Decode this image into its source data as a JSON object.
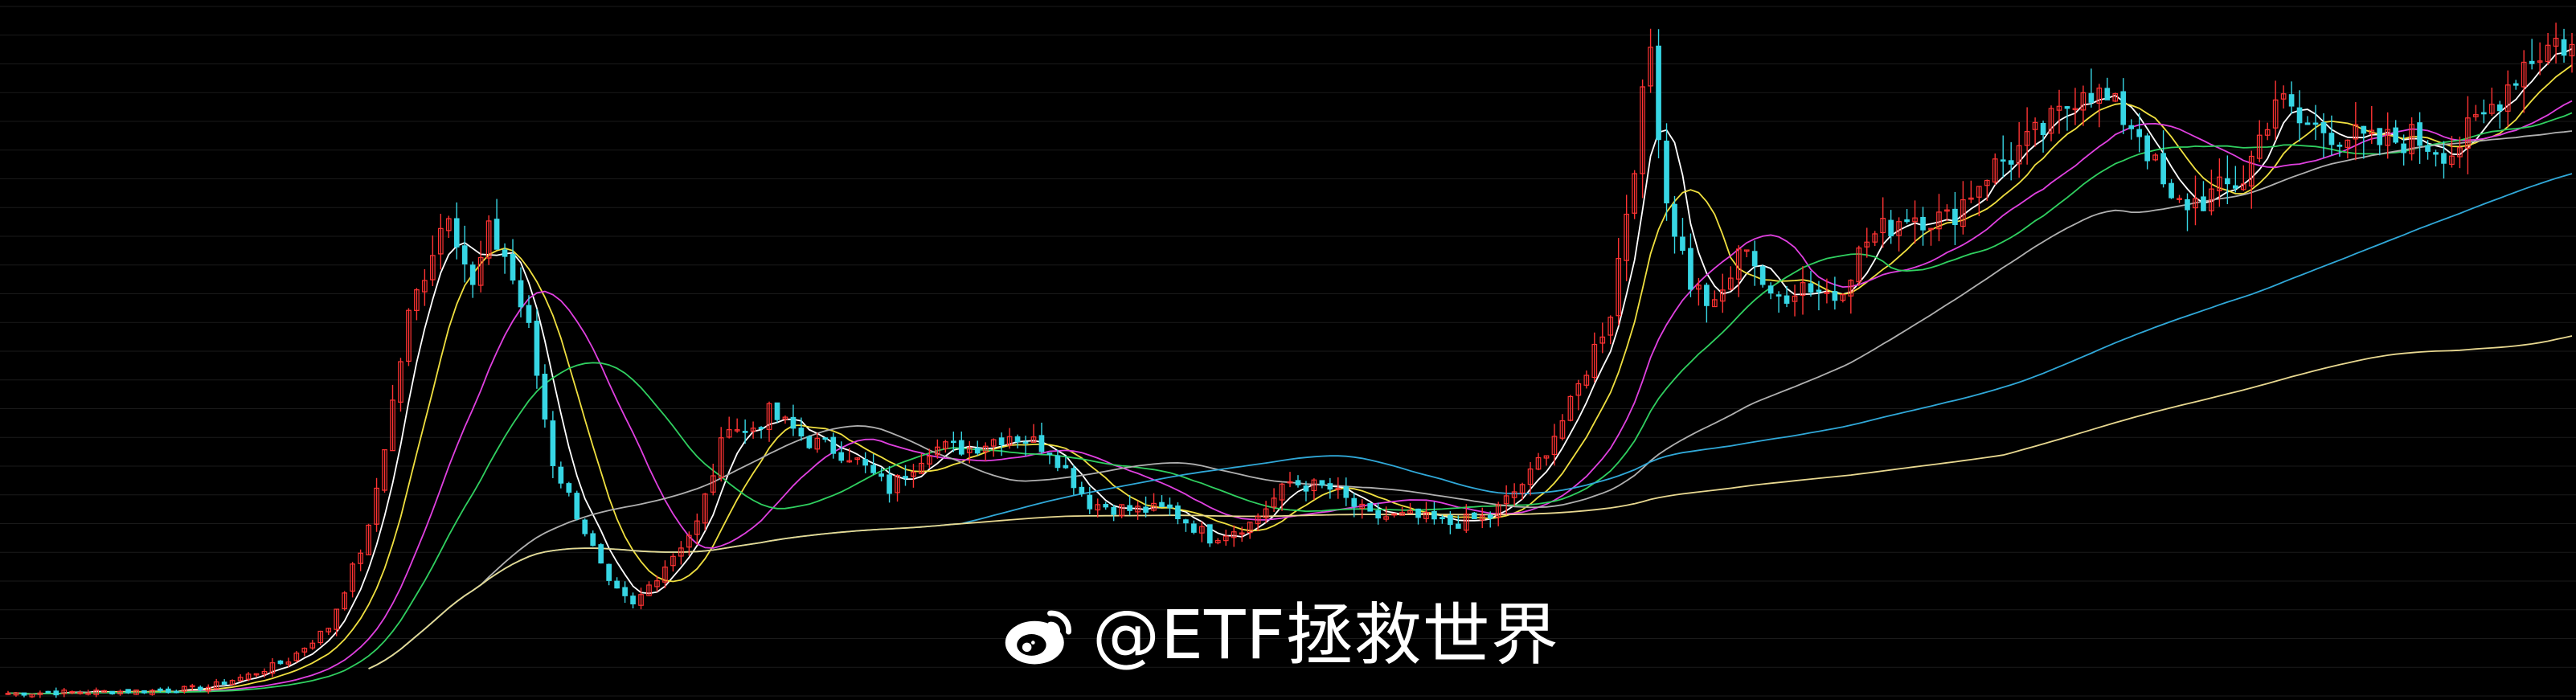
{
  "watermark": {
    "text": "@ETF拯救世界",
    "icon": "weibo-logo-icon"
  },
  "chart_data": {
    "type": "candlestick",
    "title": "",
    "xlabel": "",
    "ylabel": "",
    "x_range": [
      0,
      320
    ],
    "ylim": [
      0,
      100
    ],
    "grid": true,
    "legend": "none",
    "colors": {
      "background": "#000000",
      "grid": "#1a1a1a",
      "candle_up": "#ff3333",
      "candle_down": "#37d6e4",
      "ma": [
        "#ffffff",
        "#f0e040",
        "#e040e0",
        "#30d060",
        "#b0b0b0",
        "#30a8d8",
        "#e8d890"
      ]
    },
    "moving_average_windows": [
      5,
      10,
      20,
      30,
      60,
      120,
      250
    ],
    "close_anchors": [
      [
        0,
        0.4
      ],
      [
        10,
        0.6
      ],
      [
        20,
        0.8
      ],
      [
        25,
        1.3
      ],
      [
        30,
        3.0
      ],
      [
        35,
        5.2
      ],
      [
        40,
        10.0
      ],
      [
        45,
        24.0
      ],
      [
        50,
        55.0
      ],
      [
        53,
        65.0
      ],
      [
        55,
        71.0
      ],
      [
        58,
        59.0
      ],
      [
        60,
        67.0
      ],
      [
        62,
        64.0
      ],
      [
        65,
        53.0
      ],
      [
        68,
        34.0
      ],
      [
        72,
        24.0
      ],
      [
        75,
        16.0
      ],
      [
        78,
        13.0
      ],
      [
        82,
        19.0
      ],
      [
        86,
        25.0
      ],
      [
        90,
        40.0
      ],
      [
        92,
        38.0
      ],
      [
        95,
        41.0
      ],
      [
        100,
        37.0
      ],
      [
        105,
        35.0
      ],
      [
        110,
        30.0
      ],
      [
        115,
        36.0
      ],
      [
        120,
        36.0
      ],
      [
        125,
        38.0
      ],
      [
        130,
        36.0
      ],
      [
        135,
        28.0
      ],
      [
        140,
        27.0
      ],
      [
        145,
        27.0
      ],
      [
        150,
        23.0
      ],
      [
        155,
        25.0
      ],
      [
        160,
        31.0
      ],
      [
        165,
        30.0
      ],
      [
        170,
        26.0
      ],
      [
        175,
        26.0
      ],
      [
        180,
        25.0
      ],
      [
        185,
        26.0
      ],
      [
        190,
        32.0
      ],
      [
        195,
        42.0
      ],
      [
        200,
        56.0
      ],
      [
        203,
        78.0
      ],
      [
        205,
        94.0
      ],
      [
        207,
        72.0
      ],
      [
        210,
        60.0
      ],
      [
        213,
        56.0
      ],
      [
        217,
        66.0
      ],
      [
        220,
        57.0
      ],
      [
        224,
        60.0
      ],
      [
        228,
        58.0
      ],
      [
        232,
        66.0
      ],
      [
        237,
        70.0
      ],
      [
        242,
        69.0
      ],
      [
        247,
        76.0
      ],
      [
        252,
        80.0
      ],
      [
        256,
        84.0
      ],
      [
        259,
        89.0
      ],
      [
        262,
        86.0
      ],
      [
        266,
        82.0
      ],
      [
        270,
        71.0
      ],
      [
        274,
        72.0
      ],
      [
        279,
        75.0
      ],
      [
        283,
        87.0
      ],
      [
        286,
        83.0
      ],
      [
        290,
        82.0
      ],
      [
        295,
        80.0
      ],
      [
        300,
        81.0
      ],
      [
        305,
        79.0
      ],
      [
        309,
        84.0
      ],
      [
        314,
        92.0
      ],
      [
        318,
        95.0
      ],
      [
        320,
        94.0
      ]
    ]
  }
}
